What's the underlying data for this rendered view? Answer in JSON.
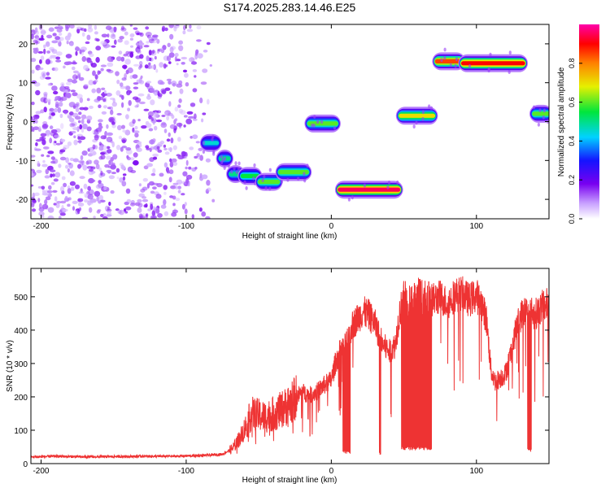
{
  "chart_data": [
    {
      "type": "heatmap",
      "title": "S174.2025.283.14.46.E25",
      "xlabel": "Height of straight line (km)",
      "ylabel": "Frequency (Hz)",
      "xlim": [
        -207,
        150
      ],
      "ylim": [
        -25,
        25
      ],
      "xticks": [
        -200,
        -100,
        0,
        100
      ],
      "xtick_labels": [
        "-200",
        "-100",
        "0",
        "100"
      ],
      "yticks": [
        20,
        10,
        0,
        -10,
        -20
      ],
      "ytick_labels": [
        "20",
        "10",
        "0",
        "-10",
        "-20"
      ],
      "colorbar": {
        "label": "Normalized spectral amplitude",
        "range": [
          0.0,
          1.0
        ],
        "ticks": [
          0.0,
          0.2,
          0.4,
          0.6,
          0.8
        ],
        "tick_labels": [
          "0.0",
          "0.2",
          "0.4",
          "0.6",
          "0.8"
        ]
      },
      "noise_region": {
        "x": [
          -207,
          -80
        ],
        "y": [
          -25,
          25
        ],
        "amplitude": 0.15
      },
      "features": [
        {
          "x": [
            -88,
            -78
          ],
          "y": -5.5,
          "amplitude": 0.45
        },
        {
          "x": [
            -77,
            -70
          ],
          "y": -9.5,
          "amplitude": 0.5
        },
        {
          "x": [
            -70,
            -62
          ],
          "y": -13.5,
          "amplitude": 0.5
        },
        {
          "x": [
            -62,
            -50
          ],
          "y": -14,
          "amplitude": 0.55
        },
        {
          "x": [
            -50,
            -36
          ],
          "y": -15.5,
          "amplitude": 0.6
        },
        {
          "x": [
            -36,
            -16
          ],
          "y": -13,
          "amplitude": 0.6
        },
        {
          "x": [
            -16,
            4
          ],
          "y": -0.5,
          "amplitude": 0.6
        },
        {
          "x": [
            5,
            47
          ],
          "y": -17.5,
          "amplitude": 0.95
        },
        {
          "x": [
            47,
            71
          ],
          "y": 1.5,
          "amplitude": 0.7
        },
        {
          "x": [
            72,
            90
          ],
          "y": 15.5,
          "amplitude": 0.85
        },
        {
          "x": [
            90,
            133
          ],
          "y": 15,
          "amplitude": 0.9
        },
        {
          "x": [
            139,
            150
          ],
          "y": 2,
          "amplitude": 0.6
        }
      ]
    },
    {
      "type": "line",
      "title": "",
      "xlabel": "Height of straight line (km)",
      "ylabel": "SNR (10 * v/v)",
      "xlim": [
        -207,
        150
      ],
      "ylim": [
        0,
        585
      ],
      "xticks": [
        -200,
        -100,
        0,
        100
      ],
      "xtick_labels": [
        "-200",
        "-100",
        "0",
        "100"
      ],
      "yticks": [
        0,
        100,
        200,
        300,
        400,
        500
      ],
      "ytick_labels": [
        "0",
        "100",
        "200",
        "300",
        "400",
        "500"
      ],
      "series": [
        {
          "name": "SNR",
          "color": "#ee3333",
          "x": [
            -207,
            -190,
            -170,
            -150,
            -130,
            -110,
            -90,
            -75,
            -68,
            -62,
            -58,
            -55,
            -50,
            -45,
            -40,
            -35,
            -30,
            -25,
            -20,
            -15,
            -10,
            -5,
            0,
            3,
            6,
            10,
            14,
            18,
            22,
            26,
            30,
            35,
            40,
            44,
            47,
            50,
            55,
            60,
            65,
            70,
            75,
            80,
            85,
            90,
            95,
            100,
            104,
            107,
            110,
            113,
            117,
            120,
            124,
            128,
            132,
            136,
            140,
            145,
            150
          ],
          "y": [
            20,
            22,
            20,
            21,
            22,
            22,
            24,
            28,
            45,
            85,
            120,
            150,
            145,
            140,
            150,
            160,
            175,
            195,
            215,
            205,
            215,
            235,
            250,
            305,
            335,
            355,
            410,
            435,
            455,
            445,
            420,
            360,
            335,
            355,
            450,
            500,
            485,
            510,
            495,
            490,
            500,
            480,
            505,
            510,
            490,
            505,
            475,
            430,
            280,
            245,
            258,
            270,
            335,
            415,
            455,
            460,
            445,
            470,
            480
          ]
        }
      ],
      "dropouts": [
        {
          "x": [
            8,
            13
          ],
          "y": 28
        },
        {
          "x": [
            33,
            34
          ],
          "y": 25
        },
        {
          "x": [
            48,
            69
          ],
          "y": 40
        },
        {
          "x": [
            135,
            138
          ],
          "y": 35
        }
      ]
    }
  ]
}
